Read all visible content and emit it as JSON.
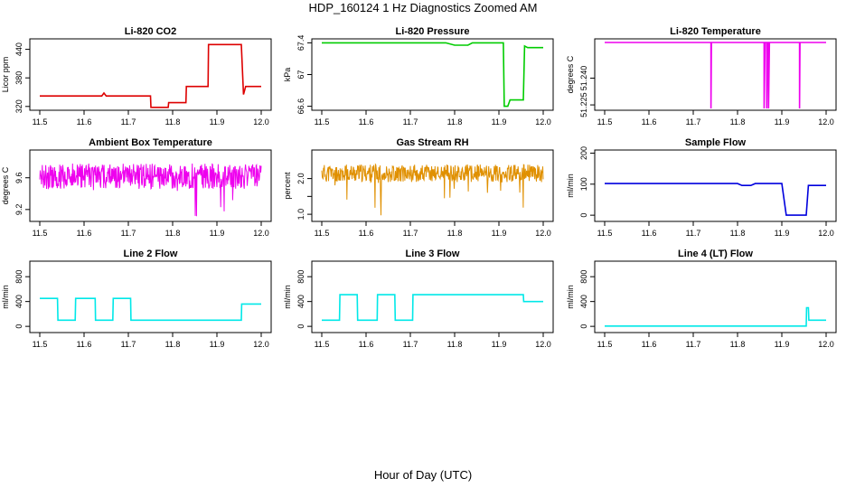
{
  "figure": {
    "title": "HDP_160124  1 Hz Diagnostics Zoomed AM",
    "xlabel": "Hour of Day (UTC)"
  },
  "chart_data": [
    {
      "type": "line",
      "title": "Li-820 CO2",
      "ylabel": "Licor ppm",
      "color": "#dd0000",
      "xlim": [
        11.5,
        12.0
      ],
      "ylim": [
        312,
        462
      ],
      "yticks": [
        320,
        380,
        440
      ],
      "xticks": [
        11.5,
        11.6,
        11.7,
        11.8,
        11.9,
        12.0
      ],
      "series": [
        {
          "x": [
            11.5,
            11.64,
            11.645,
            11.65,
            11.75,
            11.751,
            11.79,
            11.791,
            11.83,
            11.831,
            11.88,
            11.881,
            11.955,
            11.96,
            11.965,
            12.0
          ],
          "y": [
            342,
            342,
            348,
            342,
            342,
            318,
            318,
            328,
            328,
            362,
            362,
            450,
            450,
            345,
            362,
            362
          ]
        }
      ]
    },
    {
      "type": "line",
      "title": "Li-820 Pressure",
      "ylabel": "kPa",
      "color": "#00cc00",
      "xlim": [
        11.5,
        12.0
      ],
      "ylim": [
        66.55,
        67.45
      ],
      "yticks": [
        66.6,
        67.0,
        67.4
      ],
      "xticks": [
        11.5,
        11.6,
        11.7,
        11.8,
        11.9,
        12.0
      ],
      "series": [
        {
          "x": [
            11.5,
            11.78,
            11.8,
            11.83,
            11.84,
            11.91,
            11.912,
            11.92,
            11.925,
            11.955,
            11.958,
            11.965,
            11.98,
            12.0
          ],
          "y": [
            67.4,
            67.4,
            67.37,
            67.37,
            67.4,
            67.4,
            66.6,
            66.6,
            66.68,
            66.68,
            67.36,
            67.34,
            67.34,
            67.34
          ]
        }
      ]
    },
    {
      "type": "line",
      "title": "Li-820 Temperature",
      "ylabel": "degrees C",
      "color": "#ee00ee",
      "xlim": [
        11.5,
        12.0
      ],
      "ylim": [
        51.222,
        51.262
      ],
      "yticks": [
        51.225,
        51.24
      ],
      "ytick_labels": [
        "51.225",
        "51.240"
      ],
      "xticks": [
        11.5,
        11.6,
        11.7,
        11.8,
        11.9,
        12.0
      ],
      "series": [
        {
          "x": [
            11.5,
            11.74,
            11.74,
            11.741,
            11.86,
            11.86,
            11.862,
            11.866,
            11.866,
            11.868,
            11.87,
            11.87,
            11.872,
            11.94,
            11.94,
            11.941,
            12.0
          ],
          "y": [
            51.26,
            51.26,
            51.223,
            51.26,
            51.26,
            51.223,
            51.26,
            51.26,
            51.223,
            51.26,
            51.26,
            51.223,
            51.26,
            51.26,
            51.223,
            51.26,
            51.26
          ]
        }
      ]
    },
    {
      "type": "line",
      "title": "Ambient Box Temperature",
      "ylabel": "degrees C",
      "color": "#ee00ee",
      "xlim": [
        11.5,
        12.0
      ],
      "ylim": [
        9.05,
        9.95
      ],
      "yticks": [
        9.2,
        9.6
      ],
      "noise": {
        "center": 9.62,
        "amplitude": 0.16,
        "spike_low": 9.1,
        "seed": 4
      },
      "xticks": [
        11.5,
        11.6,
        11.7,
        11.8,
        11.9,
        12.0
      ],
      "series": [
        {
          "x": [
            11.5,
            12.0
          ],
          "y": [
            9.62,
            9.62
          ]
        }
      ]
    },
    {
      "type": "line",
      "title": "Gas Stream RH",
      "ylabel": "percent",
      "color": "#e09000",
      "xlim": [
        11.5,
        12.0
      ],
      "ylim": [
        0.8,
        2.8
      ],
      "yticks": [
        1.0,
        1.5,
        2.0
      ],
      "ytick_labels": [
        "1.0",
        "",
        "2.0"
      ],
      "noise": {
        "center": 2.15,
        "amplitude": 0.25,
        "spike_low": 0.95,
        "seed": 11
      },
      "xticks": [
        11.5,
        11.6,
        11.7,
        11.8,
        11.9,
        12.0
      ],
      "series": [
        {
          "x": [
            11.5,
            12.0
          ],
          "y": [
            2.15,
            2.15
          ]
        }
      ]
    },
    {
      "type": "line",
      "title": "Sample Flow",
      "ylabel": "ml/min",
      "color": "#0000dd",
      "xlim": [
        11.5,
        12.0
      ],
      "ylim": [
        -20,
        210
      ],
      "yticks": [
        0,
        100,
        200
      ],
      "xticks": [
        11.5,
        11.6,
        11.7,
        11.8,
        11.9,
        12.0
      ],
      "series": [
        {
          "x": [
            11.5,
            11.8,
            11.81,
            11.83,
            11.84,
            11.9,
            11.91,
            11.915,
            11.955,
            11.96,
            11.97,
            12.0
          ],
          "y": [
            102,
            102,
            96,
            96,
            102,
            102,
            0,
            0,
            0,
            96,
            96,
            96
          ]
        }
      ]
    },
    {
      "type": "line",
      "title": "Line 2 Flow",
      "ylabel": "ml/min",
      "color": "#00e8e8",
      "xlim": [
        11.5,
        12.0
      ],
      "ylim": [
        -100,
        1050
      ],
      "yticks": [
        0,
        400,
        800
      ],
      "xticks": [
        11.5,
        11.6,
        11.7,
        11.8,
        11.9,
        12.0
      ],
      "series": [
        {
          "x": [
            11.5,
            11.54,
            11.541,
            11.58,
            11.581,
            11.625,
            11.626,
            11.665,
            11.666,
            11.705,
            11.706,
            11.955,
            11.956,
            12.0
          ],
          "y": [
            450,
            450,
            100,
            100,
            450,
            450,
            100,
            100,
            450,
            450,
            100,
            100,
            360,
            360
          ]
        }
      ]
    },
    {
      "type": "line",
      "title": "Line 3 Flow",
      "ylabel": "ml/min",
      "color": "#00e8e8",
      "xlim": [
        11.5,
        12.0
      ],
      "ylim": [
        -100,
        1050
      ],
      "yticks": [
        0,
        400,
        800
      ],
      "xticks": [
        11.5,
        11.6,
        11.7,
        11.8,
        11.9,
        12.0
      ],
      "series": [
        {
          "x": [
            11.5,
            11.54,
            11.541,
            11.58,
            11.581,
            11.625,
            11.626,
            11.665,
            11.666,
            11.705,
            11.706,
            11.955,
            11.956,
            12.0
          ],
          "y": [
            100,
            100,
            510,
            510,
            100,
            100,
            510,
            510,
            100,
            100,
            510,
            510,
            400,
            400
          ]
        }
      ]
    },
    {
      "type": "line",
      "title": "Line 4 (LT) Flow",
      "ylabel": "ml/min",
      "color": "#00e8e8",
      "xlim": [
        11.5,
        12.0
      ],
      "ylim": [
        -100,
        1050
      ],
      "yticks": [
        0,
        400,
        800
      ],
      "xticks": [
        11.5,
        11.6,
        11.7,
        11.8,
        11.9,
        12.0
      ],
      "series": [
        {
          "x": [
            11.5,
            11.955,
            11.956,
            11.96,
            11.961,
            12.0
          ],
          "y": [
            5,
            5,
            300,
            300,
            100,
            100
          ]
        }
      ]
    }
  ]
}
